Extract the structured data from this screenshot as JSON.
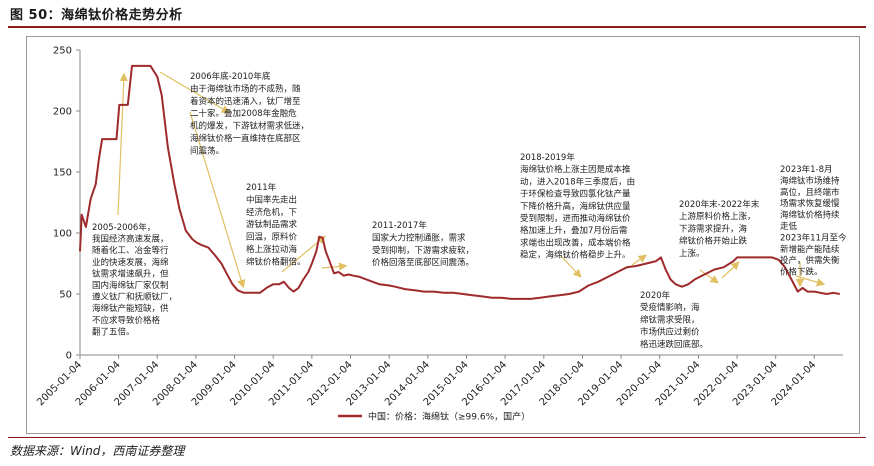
{
  "figure": {
    "title": "图 50：海绵钛价格走势分析",
    "source": "数据来源：Wind，西南证券整理"
  },
  "colors": {
    "series": "#9e2a2b",
    "arrow": "#e0c062",
    "axis": "#888888",
    "accent": "#8a1c1c"
  },
  "chart_data": {
    "type": "line",
    "title": "",
    "xlabel": "",
    "ylabel": "",
    "ylim": [
      0,
      250
    ],
    "yticks": [
      0,
      50,
      100,
      150,
      200,
      250
    ],
    "xticks": [
      "2005-01-04",
      "2006-01-04",
      "2007-01-04",
      "2008-01-04",
      "2009-01-04",
      "2010-01-04",
      "2011-01-04",
      "2012-01-04",
      "2013-01-04",
      "2014-01-04",
      "2015-01-04",
      "2016-01-04",
      "2017-01-04",
      "2018-01-04",
      "2019-01-04",
      "2020-01-04",
      "2021-01-04",
      "2022-01-04",
      "2023-01-04",
      "2024-01-04"
    ],
    "grid": false,
    "legend_position": "bottom",
    "series": [
      {
        "name": "中国：价格：海绵钛（≥99.6%，国产）",
        "points": [
          [
            "2005-01-04",
            85
          ],
          [
            "2005-01-20",
            115
          ],
          [
            "2005-03-01",
            105
          ],
          [
            "2005-04-15",
            128
          ],
          [
            "2005-06-01",
            140
          ],
          [
            "2005-07-01",
            160
          ],
          [
            "2005-08-01",
            177
          ],
          [
            "2005-12-15",
            177
          ],
          [
            "2006-01-10",
            205
          ],
          [
            "2006-04-01",
            205
          ],
          [
            "2006-05-10",
            237
          ],
          [
            "2006-09-01",
            237
          ],
          [
            "2006-11-01",
            237
          ],
          [
            "2007-01-04",
            228
          ],
          [
            "2007-02-15",
            213
          ],
          [
            "2007-04-15",
            170
          ],
          [
            "2007-06-15",
            140
          ],
          [
            "2007-08-01",
            120
          ],
          [
            "2007-10-01",
            102
          ],
          [
            "2007-12-01",
            95
          ],
          [
            "2008-01-15",
            92
          ],
          [
            "2008-03-01",
            90
          ],
          [
            "2008-05-01",
            88
          ],
          [
            "2008-07-01",
            82
          ],
          [
            "2008-09-01",
            75
          ],
          [
            "2008-11-01",
            65
          ],
          [
            "2008-12-15",
            58
          ],
          [
            "2009-02-01",
            53
          ],
          [
            "2009-04-01",
            51
          ],
          [
            "2009-06-01",
            51
          ],
          [
            "2009-09-01",
            51
          ],
          [
            "2009-11-01",
            55
          ],
          [
            "2010-01-04",
            58
          ],
          [
            "2010-03-01",
            58
          ],
          [
            "2010-04-15",
            60
          ],
          [
            "2010-06-01",
            55
          ],
          [
            "2010-07-15",
            52
          ],
          [
            "2010-09-01",
            55
          ],
          [
            "2010-10-15",
            62
          ],
          [
            "2010-12-01",
            68
          ],
          [
            "2011-01-04",
            75
          ],
          [
            "2011-02-15",
            85
          ],
          [
            "2011-03-15",
            97
          ],
          [
            "2011-04-15",
            96
          ],
          [
            "2011-05-15",
            85
          ],
          [
            "2011-06-15",
            78
          ],
          [
            "2011-08-01",
            67
          ],
          [
            "2011-09-15",
            68
          ],
          [
            "2011-11-01",
            65
          ],
          [
            "2011-12-15",
            66
          ],
          [
            "2012-02-01",
            65
          ],
          [
            "2012-04-01",
            64
          ],
          [
            "2012-06-01",
            62
          ],
          [
            "2012-08-01",
            60
          ],
          [
            "2012-10-01",
            58
          ],
          [
            "2013-01-04",
            57
          ],
          [
            "2013-03-01",
            56
          ],
          [
            "2013-06-01",
            54
          ],
          [
            "2013-09-01",
            53
          ],
          [
            "2013-12-01",
            52
          ],
          [
            "2014-03-01",
            52
          ],
          [
            "2014-06-01",
            51
          ],
          [
            "2014-09-01",
            51
          ],
          [
            "2014-12-01",
            50
          ],
          [
            "2015-03-01",
            49
          ],
          [
            "2015-06-01",
            48
          ],
          [
            "2015-09-01",
            47
          ],
          [
            "2015-12-01",
            47
          ],
          [
            "2016-03-01",
            46
          ],
          [
            "2016-06-01",
            46
          ],
          [
            "2016-09-01",
            46
          ],
          [
            "2016-12-01",
            47
          ],
          [
            "2017-03-01",
            48
          ],
          [
            "2017-06-01",
            49
          ],
          [
            "2017-09-01",
            50
          ],
          [
            "2017-12-01",
            52
          ],
          [
            "2018-03-01",
            57
          ],
          [
            "2018-06-01",
            60
          ],
          [
            "2018-09-01",
            64
          ],
          [
            "2018-12-01",
            68
          ],
          [
            "2019-03-01",
            72
          ],
          [
            "2019-06-01",
            73
          ],
          [
            "2019-09-01",
            75
          ],
          [
            "2019-12-01",
            77
          ],
          [
            "2020-01-15",
            80
          ],
          [
            "2020-03-01",
            70
          ],
          [
            "2020-04-15",
            62
          ],
          [
            "2020-06-01",
            58
          ],
          [
            "2020-08-01",
            56
          ],
          [
            "2020-10-01",
            58
          ],
          [
            "2020-12-01",
            62
          ],
          [
            "2021-03-01",
            66
          ],
          [
            "2021-06-01",
            70
          ],
          [
            "2021-09-01",
            72
          ],
          [
            "2021-12-01",
            77
          ],
          [
            "2022-01-04",
            80
          ],
          [
            "2022-03-01",
            80
          ],
          [
            "2022-06-01",
            80
          ],
          [
            "2022-09-01",
            80
          ],
          [
            "2022-12-01",
            80
          ],
          [
            "2023-02-01",
            78
          ],
          [
            "2023-04-01",
            72
          ],
          [
            "2023-06-01",
            62
          ],
          [
            "2023-08-01",
            52
          ],
          [
            "2023-09-15",
            55
          ],
          [
            "2023-11-01",
            52
          ],
          [
            "2024-01-04",
            52
          ],
          [
            "2024-03-01",
            51
          ],
          [
            "2024-05-01",
            50
          ],
          [
            "2024-07-01",
            51
          ],
          [
            "2024-09-01",
            50
          ]
        ]
      }
    ],
    "annotations": [
      {
        "lines": [
          "2005-2006年，",
          "我国经济高速发展，",
          "随着化工、冶金等行",
          "业的快速发展，海绵",
          "钛需求增速飙升，但",
          "国内海绵钛厂家仅制",
          "遵义钛厂和抚顺钛厂，",
          "海绵钛产能短缺，供",
          "不应求导致价格格",
          "翻了五倍。"
        ]
      },
      {
        "lines": [
          "2006年底-2010年底",
          "由于海绵钛市场的不成熟，随",
          "着资本的迅速涌入，钛厂增至",
          "二十家。叠加2008年金融危",
          "机的爆发，下游钛材需求低迷，",
          "海绵钛价格一直维持在底部区",
          "间震荡。"
        ]
      },
      {
        "lines": [
          "2011年",
          "中国率先走出",
          "经济危机，下",
          "游钛制品需求",
          "回温，原料价",
          "格上涨拉动海",
          "绵钛价格翻倍。"
        ]
      },
      {
        "lines": [
          "2011-2017年",
          "国家大力控制通胀，需求",
          "受到抑制，下游需求疲软，",
          "价格回落至底部区间震荡。"
        ]
      },
      {
        "lines": [
          "2018-2019年",
          "海绵钛价格上涨主因是成本推",
          "动，进入2018年三季度后，由",
          "于环保检查导致四氯化钛产量",
          "下降价格升高，海绵钛供应量",
          "受到限制，进而推动海绵钛价",
          "格加速上升，叠加7月份后需",
          "求端也出现改善，成本端价格",
          "稳定，海绵钛价格稳步上升。"
        ]
      },
      {
        "lines": [
          "2020年末-2022年末",
          "上游原料价格上涨，",
          "下游需求提升，海",
          "绵钛价格开始止跌",
          "上涨。"
        ]
      },
      {
        "lines": [
          "2020年",
          "受疫情影响，海",
          "绵钛需求受限，",
          "市场供应过剩价",
          "格迅速跌回底部。"
        ]
      },
      {
        "lines": [
          "2023年1-8月",
          "海绵钛市场维持",
          "高位，且终端市",
          "场需求恢复缓慢",
          "海绵钛价格持续",
          "走低",
          "2023年11月至今",
          "新增能产能陆续",
          "投产，供需失衡",
          "价格下跌。"
        ]
      }
    ]
  }
}
